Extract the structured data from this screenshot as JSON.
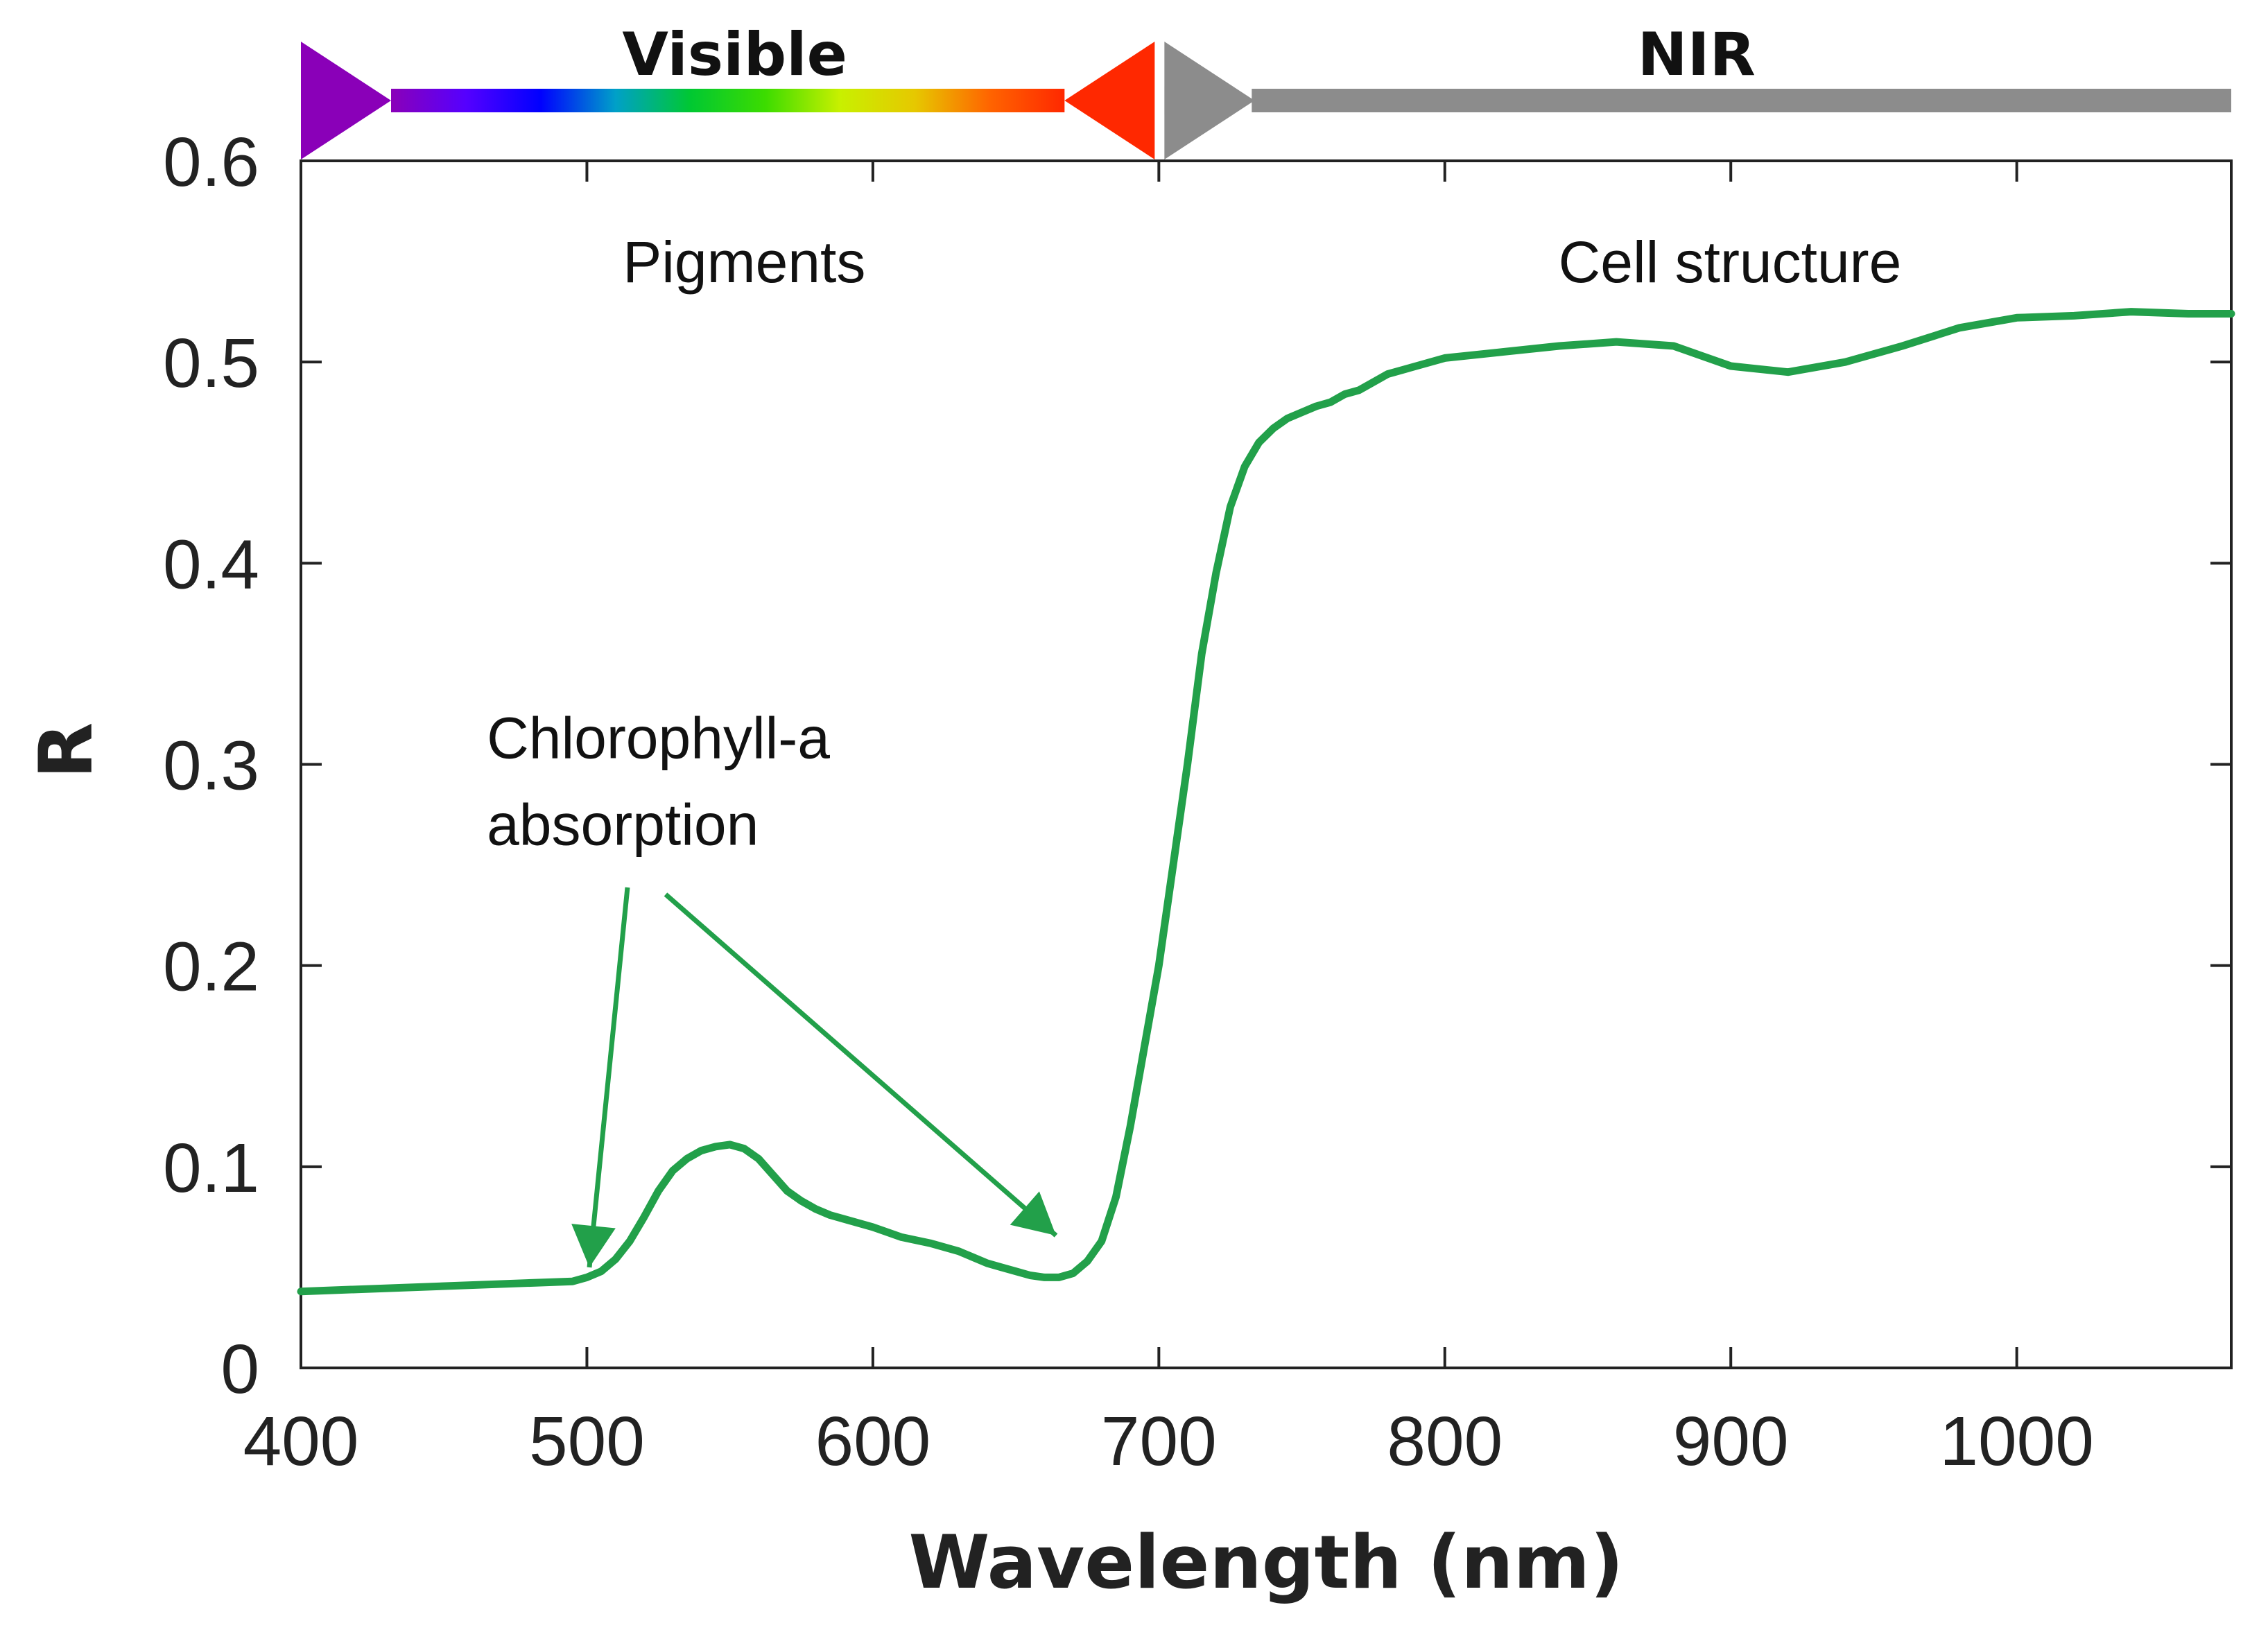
{
  "chart_data": {
    "type": "line",
    "title": "",
    "xlabel": "Wavelength (nm)",
    "ylabel": "R",
    "xlim": [
      400,
      1075
    ],
    "ylim": [
      0,
      0.6
    ],
    "xticks": [
      400,
      500,
      600,
      700,
      800,
      900,
      1000
    ],
    "xtick_labels": [
      "400",
      "500",
      "600",
      "700",
      "800",
      "900",
      "1000"
    ],
    "yticks": [
      0,
      0.1,
      0.2,
      0.3,
      0.4,
      0.5,
      0.6
    ],
    "ytick_labels": [
      "0",
      "0.1",
      "0.2",
      "0.3",
      "0.4",
      "0.5",
      "0.6"
    ],
    "grid": false,
    "legend": "none",
    "series": [
      {
        "color": "#22a04a",
        "x": [
          400,
          495,
          500,
          505,
          510,
          515,
          520,
          525,
          530,
          535,
          540,
          545,
          550,
          555,
          560,
          565,
          570,
          575,
          580,
          585,
          590,
          600,
          610,
          620,
          630,
          640,
          645,
          650,
          655,
          660,
          665,
          670,
          675,
          680,
          685,
          690,
          695,
          700,
          705,
          710,
          715,
          720,
          725,
          730,
          735,
          740,
          745,
          750,
          755,
          760,
          765,
          770,
          775,
          780,
          790,
          800,
          820,
          840,
          860,
          880,
          900,
          920,
          940,
          960,
          980,
          1000,
          1020,
          1040,
          1060,
          1075
        ],
        "y": [
          0.038,
          0.043,
          0.045,
          0.048,
          0.054,
          0.063,
          0.075,
          0.088,
          0.098,
          0.104,
          0.108,
          0.11,
          0.111,
          0.109,
          0.104,
          0.096,
          0.088,
          0.083,
          0.079,
          0.076,
          0.074,
          0.07,
          0.065,
          0.062,
          0.058,
          0.052,
          0.05,
          0.048,
          0.046,
          0.045,
          0.045,
          0.047,
          0.053,
          0.063,
          0.085,
          0.12,
          0.16,
          0.2,
          0.25,
          0.3,
          0.355,
          0.395,
          0.428,
          0.448,
          0.46,
          0.467,
          0.472,
          0.475,
          0.478,
          0.48,
          0.484,
          0.486,
          0.49,
          0.494,
          0.498,
          0.502,
          0.505,
          0.508,
          0.51,
          0.508,
          0.498,
          0.495,
          0.5,
          0.508,
          0.517,
          0.522,
          0.523,
          0.525,
          0.524,
          0.524
        ]
      }
    ],
    "bands": [
      {
        "label": "Visible",
        "start": 400,
        "end": 700,
        "colors": [
          "#8a00b8",
          "#5500ff",
          "#0000ff",
          "#00a0c8",
          "#00c832",
          "#3cdc00",
          "#c8f000",
          "#e6c800",
          "#ff6400",
          "#ff2800"
        ]
      },
      {
        "label": "NIR",
        "start": 700,
        "end": 1075,
        "colors": [
          "#8c8c8c"
        ]
      }
    ],
    "annotations": [
      {
        "text": "Pigments",
        "x": 555,
        "y": 0.55
      },
      {
        "text": "Cell structure",
        "x": 890,
        "y": 0.55
      },
      {
        "lines": [
          "Chlorophyll-a",
          "absorption"
        ],
        "x": 465,
        "y": 0.31,
        "arrows_to_x": [
          500,
          680
        ]
      }
    ]
  }
}
